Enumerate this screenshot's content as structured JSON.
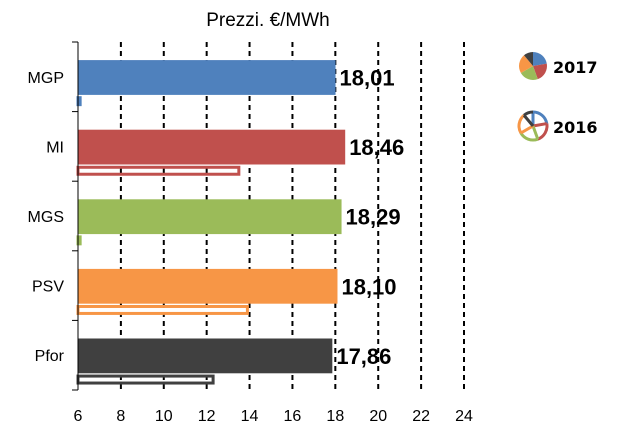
{
  "chart_data": {
    "type": "bar",
    "orientation": "horizontal",
    "title": "Prezzi. €/MWh",
    "categories": [
      "MGP",
      "MI",
      "MGS",
      "PSV",
      "Pfor"
    ],
    "xlim": [
      6,
      24
    ],
    "x_ticks": [
      "6",
      "8",
      "10",
      "12",
      "14",
      "16",
      "18",
      "20",
      "22",
      "24"
    ],
    "grid": "vertical dashed",
    "legend_position": "right",
    "series": [
      {
        "name": "2017",
        "style": "filled",
        "values": [
          18.01,
          18.46,
          18.29,
          18.1,
          17.86
        ],
        "data_labels": [
          "18,01",
          "18,46",
          "18,29",
          "18,10",
          "17,86"
        ],
        "colors": [
          "#4f81bd",
          "#c0504d",
          "#9bbb59",
          "#f79646",
          "#404040"
        ]
      },
      {
        "name": "2016",
        "style": "outline",
        "values": [
          6.1,
          13.5,
          6.1,
          13.9,
          12.3
        ],
        "colors": [
          "#4f81bd",
          "#c0504d",
          "#9bbb59",
          "#f79646",
          "#404040"
        ]
      }
    ]
  }
}
